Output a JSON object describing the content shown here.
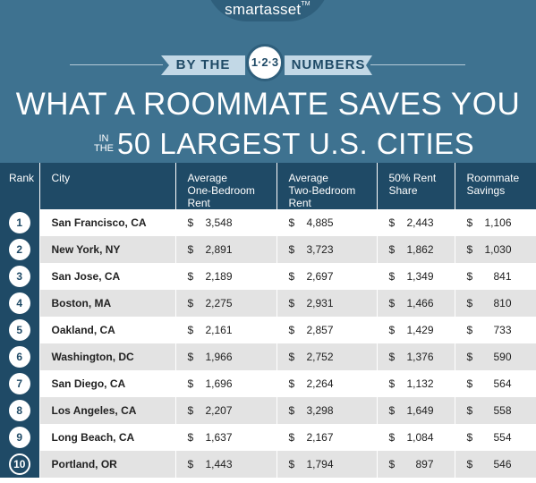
{
  "brand": {
    "logo": "smartasset",
    "tm": "TM"
  },
  "banner": {
    "left": "BY THE",
    "badge": "1·2·3",
    "right": "NUMBERS"
  },
  "title": {
    "line1": "WHAT A ROOMMATE SAVES YOU",
    "small_top": "IN",
    "small_bottom": "THE",
    "line2": "50 LARGEST U.S. CITIES"
  },
  "table": {
    "headers": {
      "rank": "Rank",
      "city": "City",
      "one_bed": [
        "Average",
        "One-Bedroom",
        "Rent"
      ],
      "two_bed": [
        "Average",
        "Two-Bedroom",
        "Rent"
      ],
      "share": [
        "50% Rent",
        "Share"
      ],
      "savings": [
        "Roommate",
        "Savings"
      ]
    },
    "currency": "$",
    "rows": [
      {
        "rank": "1",
        "city": "San Francisco, CA",
        "one_bed": "3,548",
        "two_bed": "4,885",
        "share": "2,443",
        "savings": "1,106"
      },
      {
        "rank": "2",
        "city": "New York, NY",
        "one_bed": "2,891",
        "two_bed": "3,723",
        "share": "1,862",
        "savings": "1,030"
      },
      {
        "rank": "3",
        "city": "San Jose, CA",
        "one_bed": "2,189",
        "two_bed": "2,697",
        "share": "1,349",
        "savings": "841"
      },
      {
        "rank": "4",
        "city": "Boston, MA",
        "one_bed": "2,275",
        "two_bed": "2,931",
        "share": "1,466",
        "savings": "810"
      },
      {
        "rank": "5",
        "city": "Oakland, CA",
        "one_bed": "2,161",
        "two_bed": "2,857",
        "share": "1,429",
        "savings": "733"
      },
      {
        "rank": "6",
        "city": "Washington, DC",
        "one_bed": "1,966",
        "two_bed": "2,752",
        "share": "1,376",
        "savings": "590"
      },
      {
        "rank": "7",
        "city": "San Diego, CA",
        "one_bed": "1,696",
        "two_bed": "2,264",
        "share": "1,132",
        "savings": "564"
      },
      {
        "rank": "8",
        "city": "Los Angeles, CA",
        "one_bed": "2,207",
        "two_bed": "3,298",
        "share": "1,649",
        "savings": "558"
      },
      {
        "rank": "9",
        "city": "Long Beach, CA",
        "one_bed": "1,637",
        "two_bed": "2,167",
        "share": "1,084",
        "savings": "554"
      },
      {
        "rank": "10",
        "city": "Portland, OR",
        "one_bed": "1,443",
        "two_bed": "1,794",
        "share": "897",
        "savings": "546"
      }
    ]
  },
  "colors": {
    "hero": "#3e7290",
    "header": "#1f4a66",
    "ribbon": "#c2d8e6",
    "row_alt": "#e3e3e3"
  }
}
